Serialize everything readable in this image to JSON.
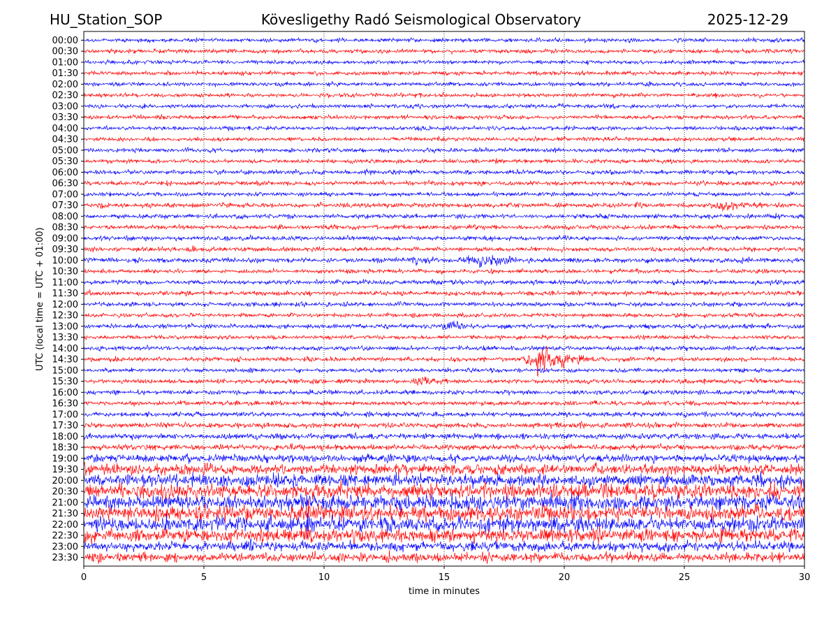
{
  "chart_data": {
    "type": "line",
    "title_left": "HU_Station_SOP",
    "title": "Kövesligethy Radó Seismological Observatory",
    "title_right": "2025-12-29",
    "xlabel": "time in minutes",
    "ylabel": "UTC (local time = UTC + 01:00)",
    "xlim": [
      0,
      30
    ],
    "xticks": [
      "0",
      "5",
      "10",
      "15",
      "20",
      "25",
      "30"
    ],
    "grid": "vertical dotted at x ticks",
    "colors": [
      "#0000ff",
      "#ff0000"
    ],
    "rows": [
      "00:00",
      "00:30",
      "01:00",
      "01:30",
      "02:00",
      "02:30",
      "03:00",
      "03:30",
      "04:00",
      "04:30",
      "05:00",
      "05:30",
      "06:00",
      "06:30",
      "07:00",
      "07:30",
      "08:00",
      "08:30",
      "09:00",
      "09:30",
      "10:00",
      "10:30",
      "11:00",
      "11:30",
      "12:00",
      "12:30",
      "13:00",
      "13:30",
      "14:00",
      "14:30",
      "15:00",
      "15:30",
      "16:00",
      "16:30",
      "17:00",
      "17:30",
      "18:00",
      "18:30",
      "19:00",
      "19:30",
      "20:00",
      "20:30",
      "21:00",
      "21:30",
      "22:00",
      "22:30",
      "23:00",
      "23:30"
    ],
    "noise_level": [
      1,
      1,
      1,
      1,
      1,
      1,
      1,
      1,
      1,
      1,
      1,
      1,
      1.1,
      1.1,
      1,
      1.2,
      1.1,
      1.1,
      1.1,
      1.1,
      1.2,
      1,
      1.1,
      1.1,
      1.1,
      1,
      1.1,
      1,
      1.1,
      1.1,
      1,
      1.1,
      1.1,
      1.1,
      1.2,
      1.3,
      1.4,
      1.4,
      2,
      2.6,
      3.2,
      3.6,
      3.8,
      3.8,
      3.6,
      3.2,
      2.4,
      2.2
    ],
    "events": [
      {
        "row": "07:30",
        "time_min": 26.6,
        "amplitude": 2.5,
        "duration_min": 1.5
      },
      {
        "row": "10:00",
        "time_min": 13.8,
        "amplitude": 2.5,
        "duration_min": 1
      },
      {
        "row": "10:00",
        "time_min": 16.5,
        "amplitude": 2.5,
        "duration_min": 3
      },
      {
        "row": "13:00",
        "time_min": 15.2,
        "amplitude": 2,
        "duration_min": 1.5
      },
      {
        "row": "14:30",
        "time_min": 19.0,
        "amplitude": 9,
        "duration_min": 2.5
      },
      {
        "row": "15:30",
        "time_min": 14.0,
        "amplitude": 2.5,
        "duration_min": 1
      },
      {
        "row": "21:30",
        "time_min": 9.3,
        "amplitude": 9,
        "duration_min": 0.2
      },
      {
        "row": "22:00",
        "time_min": 9.3,
        "amplitude": 7,
        "duration_min": 0.2
      }
    ]
  }
}
